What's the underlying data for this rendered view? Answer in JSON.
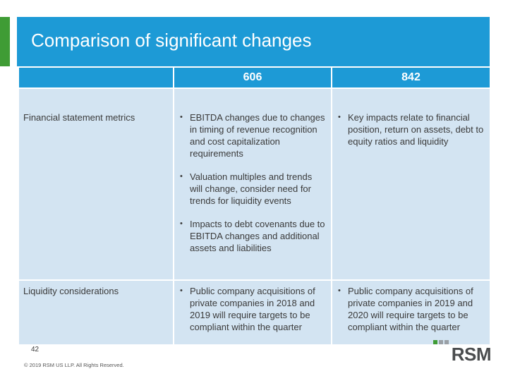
{
  "slide": {
    "title": "Comparison of significant changes",
    "page_number": "42",
    "copyright": "© 2019 RSM US LLP. All Rights Reserved.",
    "logo_text": "RSM",
    "colors": {
      "accent_green": "#3f9c35",
      "header_blue": "#1d9ad6",
      "cell_light_blue": "#d3e4f2",
      "logo_gray": "#4a4c4e"
    }
  },
  "table": {
    "headers": [
      "",
      "606",
      "842"
    ],
    "rows": [
      {
        "label": "Financial statement metrics",
        "col_606": [
          "EBITDA changes due to changes in timing of revenue recognition and cost capitalization requirements",
          "Valuation multiples and trends will change, consider need for trends for liquidity events",
          "Impacts to debt covenants due to EBITDA changes and additional assets and liabilities"
        ],
        "col_842": [
          "Key impacts relate to financial position, return on assets, debt to equity ratios and liquidity"
        ]
      },
      {
        "label": "Liquidity considerations",
        "col_606": [
          "Public company acquisitions of private companies in 2018 and 2019 will require targets to be compliant within the quarter"
        ],
        "col_842": [
          "Public company acquisitions of private companies in 2019 and 2020 will require targets to be compliant within the quarter"
        ]
      }
    ]
  }
}
